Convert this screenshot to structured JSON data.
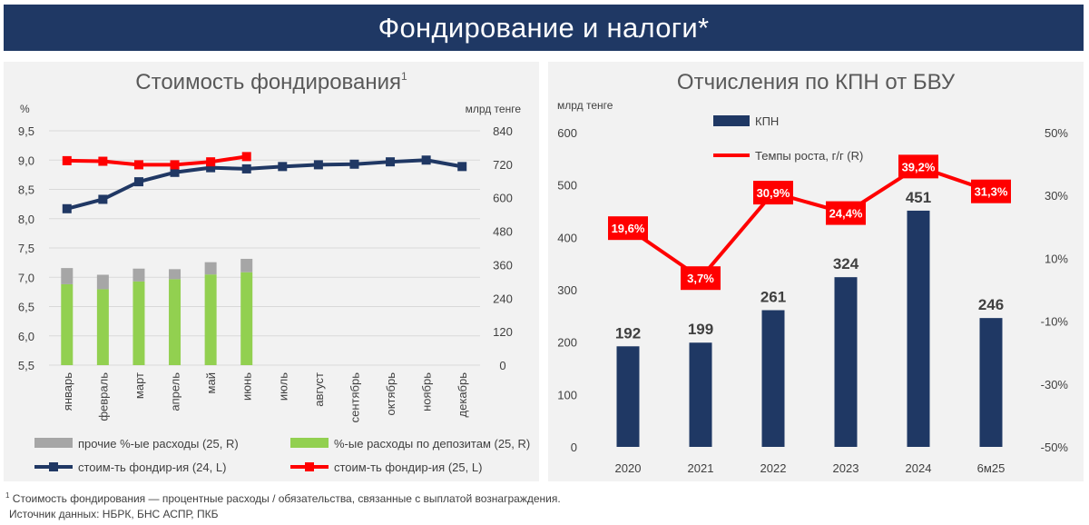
{
  "banner": {
    "title": "Фондирование и налоги*"
  },
  "footnotes": {
    "marker": "1",
    "definition": "Стоимость фондирования — процентные расходы / обязательства, связанные с выплатой вознаграждения.",
    "source": "Источник данных: НБРК, БНС АСПР, ПКБ"
  },
  "colors": {
    "navy": "#1f3864",
    "series_blue": "#203864",
    "red": "#ff0000",
    "green": "#92d050",
    "gray": "#a6a6a6",
    "panel_bg": "#f2f2f2"
  },
  "chart_data": [
    {
      "type": "bar",
      "title": "Стоимость фондирования",
      "title_superscript": "1",
      "ylabel": "%",
      "y2label": "млрд тенге",
      "ylim": [
        5.5,
        9.5
      ],
      "y_ticks": [
        "9,5",
        "9,0",
        "8,5",
        "8,0",
        "7,5",
        "7,0",
        "6,5",
        "6,0",
        "5,5"
      ],
      "y2lim": [
        0,
        840
      ],
      "y2_ticks": [
        "840",
        "720",
        "600",
        "480",
        "360",
        "240",
        "120",
        "0"
      ],
      "categories": [
        "январь",
        "февраль",
        "март",
        "апрель",
        "май",
        "июнь",
        "июль",
        "август",
        "сентябрь",
        "октябрь",
        "ноябрь",
        "декабрь"
      ],
      "series": [
        {
          "name": "%-ые расходы по депозитам (25, R)",
          "kind": "bar",
          "axis": "right",
          "stack": 0,
          "color": "#92d050",
          "values": [
            290,
            272,
            300,
            308,
            325,
            333,
            null,
            null,
            null,
            null,
            null,
            null
          ]
        },
        {
          "name": "прочие %-ые расходы (25, R)",
          "kind": "bar",
          "axis": "right",
          "stack": 1,
          "color": "#a6a6a6",
          "values": [
            58,
            52,
            46,
            36,
            44,
            48,
            null,
            null,
            null,
            null,
            null,
            null
          ]
        },
        {
          "name": "стоим-ть фондир-ия (24, L)",
          "kind": "line",
          "axis": "left",
          "color": "#203864",
          "values": [
            8.17,
            8.33,
            8.63,
            8.79,
            8.87,
            8.85,
            8.89,
            8.92,
            8.93,
            8.97,
            9.0,
            8.89
          ]
        },
        {
          "name": "стоим-ть фондир-ия (25, L)",
          "kind": "line",
          "axis": "left",
          "color": "#ff0000",
          "values": [
            8.99,
            8.98,
            8.92,
            8.92,
            8.97,
            9.06,
            null,
            null,
            null,
            null,
            null,
            null
          ]
        }
      ],
      "legend": {
        "position": "bottom",
        "items": [
          {
            "label": "прочие %-ые расходы (25, R)",
            "kind": "bar",
            "color": "#a6a6a6"
          },
          {
            "label": "%-ые расходы по депозитам (25, R)",
            "kind": "bar",
            "color": "#92d050"
          },
          {
            "label": "стоим-ть фондир-ия (24, L)",
            "kind": "line",
            "color": "#203864"
          },
          {
            "label": "стоим-ть фондир-ия (25, L)",
            "kind": "line",
            "color": "#ff0000"
          }
        ]
      }
    },
    {
      "type": "bar",
      "title": "Отчисления по КПН от БВУ",
      "ylabel": "млрд тенге",
      "ylim": [
        0,
        600
      ],
      "y_ticks": [
        "600",
        "500",
        "400",
        "300",
        "200",
        "100",
        "0"
      ],
      "y2lim": [
        -50,
        50
      ],
      "y2_ticks": [
        "50%",
        "30%",
        "10%",
        "-10%",
        "-30%",
        "-50%"
      ],
      "categories": [
        "2020",
        "2021",
        "2022",
        "2023",
        "2024",
        "6м25"
      ],
      "series": [
        {
          "name": "КПН",
          "kind": "bar",
          "axis": "left",
          "color": "#1f3864",
          "values": [
            192,
            199,
            261,
            324,
            451,
            246
          ],
          "labels": [
            "192",
            "199",
            "261",
            "324",
            "451",
            "246"
          ]
        },
        {
          "name": "Темпы роста, г/г (R)",
          "kind": "line",
          "axis": "right",
          "color": "#ff0000",
          "values": [
            19.6,
            3.7,
            30.9,
            24.4,
            39.2,
            31.3
          ],
          "labels": [
            "19,6%",
            "3,7%",
            "30,9%",
            "24,4%",
            "39,2%",
            "31,3%"
          ]
        }
      ],
      "legend": {
        "position": "top-left",
        "items": [
          {
            "label": "КПН",
            "kind": "bar",
            "color": "#1f3864"
          },
          {
            "label": "Темпы роста, г/г (R)",
            "kind": "line",
            "color": "#ff0000"
          }
        ]
      }
    }
  ]
}
